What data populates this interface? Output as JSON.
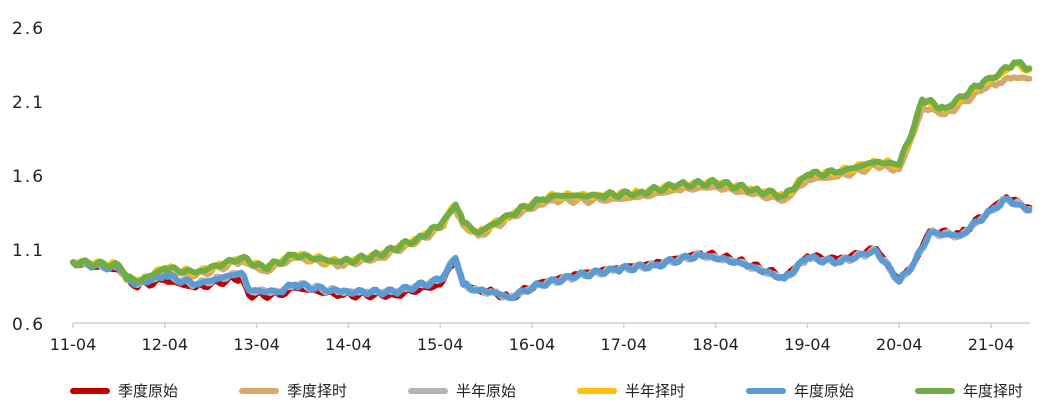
{
  "chart_data": {
    "type": "line",
    "title": "",
    "xlabel": "",
    "ylabel": "",
    "ylim": [
      0.6,
      2.6
    ],
    "yticks": [
      "0.6",
      "1.1",
      "1.6",
      "2.1",
      "2.6"
    ],
    "xlim": [
      "2011-04",
      "2021-09"
    ],
    "xticks": [
      "11-04",
      "12-04",
      "13-04",
      "14-04",
      "15-04",
      "16-04",
      "17-04",
      "18-04",
      "19-04",
      "20-04",
      "21-04"
    ],
    "grid": false,
    "legend_position": "bottom",
    "series": [
      {
        "name": "季度原始",
        "color": "#c00000",
        "x": [
          "2011-04",
          "2011-10",
          "2011-12",
          "2012-04",
          "2012-08",
          "2013-02",
          "2013-03",
          "2013-07",
          "2013-09",
          "2014-03",
          "2014-10",
          "2015-04",
          "2015-06",
          "2015-07",
          "2015-09",
          "2015-11",
          "2016-01",
          "2016-05",
          "2016-10",
          "2017-03",
          "2017-08",
          "2018-02",
          "2018-07",
          "2019-01",
          "2019-04",
          "2019-08",
          "2020-01",
          "2020-04",
          "2020-06",
          "2020-08",
          "2020-12",
          "2021-04",
          "2021-06",
          "2021-09"
        ],
        "y": [
          1.01,
          0.96,
          0.85,
          0.89,
          0.84,
          0.91,
          0.79,
          0.79,
          0.84,
          0.79,
          0.79,
          0.86,
          1.03,
          0.86,
          0.82,
          0.81,
          0.77,
          0.87,
          0.93,
          0.97,
          1.0,
          1.07,
          1.02,
          0.91,
          1.05,
          1.03,
          1.1,
          0.88,
          1.01,
          1.22,
          1.2,
          1.37,
          1.45,
          1.38
        ]
      },
      {
        "name": "季度择时",
        "color": "#d4a96a",
        "x": [
          "2011-04",
          "2011-10",
          "2011-11",
          "2012-01",
          "2012-04",
          "2012-08",
          "2013-02",
          "2013-05",
          "2013-09",
          "2014-03",
          "2014-08",
          "2015-01",
          "2015-04",
          "2015-06",
          "2015-07",
          "2015-09",
          "2016-01",
          "2016-05",
          "2016-07",
          "2017-01",
          "2017-06",
          "2017-11",
          "2018-04",
          "2018-09",
          "2019-01",
          "2019-04",
          "2019-08",
          "2020-01",
          "2020-04",
          "2020-06",
          "2020-07",
          "2020-10",
          "2021-03",
          "2021-05",
          "2021-07",
          "2021-09"
        ],
        "y": [
          1.01,
          0.98,
          0.89,
          0.88,
          0.95,
          0.92,
          1.02,
          0.95,
          1.04,
          0.99,
          1.04,
          1.15,
          1.24,
          1.38,
          1.26,
          1.19,
          1.31,
          1.4,
          1.43,
          1.43,
          1.45,
          1.5,
          1.52,
          1.47,
          1.43,
          1.57,
          1.59,
          1.66,
          1.64,
          1.9,
          2.06,
          2.01,
          2.18,
          2.22,
          2.26,
          2.25
        ]
      },
      {
        "name": "半年原始",
        "color": "#b4b4b4",
        "x": [
          "2011-04",
          "2011-10",
          "2011-12",
          "2012-04",
          "2012-08",
          "2013-02",
          "2013-03",
          "2013-07",
          "2013-09",
          "2014-03",
          "2014-10",
          "2015-04",
          "2015-06",
          "2015-07",
          "2015-09",
          "2015-11",
          "2016-01",
          "2016-05",
          "2016-10",
          "2017-03",
          "2017-08",
          "2018-02",
          "2018-07",
          "2019-01",
          "2019-04",
          "2019-08",
          "2020-01",
          "2020-04",
          "2020-06",
          "2020-08",
          "2020-12",
          "2021-04",
          "2021-06",
          "2021-09"
        ],
        "y": [
          1.01,
          0.97,
          0.86,
          0.92,
          0.86,
          0.94,
          0.82,
          0.81,
          0.86,
          0.81,
          0.81,
          0.89,
          1.04,
          0.86,
          0.82,
          0.81,
          0.77,
          0.86,
          0.92,
          0.96,
          0.99,
          1.06,
          1.01,
          0.9,
          1.04,
          1.01,
          1.09,
          0.88,
          1.01,
          1.21,
          1.19,
          1.36,
          1.44,
          1.37
        ]
      },
      {
        "name": "半年择时",
        "color": "#ffc000",
        "x": [
          "2011-04",
          "2011-10",
          "2011-11",
          "2012-01",
          "2012-04",
          "2012-08",
          "2013-02",
          "2013-05",
          "2013-09",
          "2014-03",
          "2014-08",
          "2015-01",
          "2015-04",
          "2015-06",
          "2015-07",
          "2015-09",
          "2016-01",
          "2016-05",
          "2016-07",
          "2017-01",
          "2017-06",
          "2017-11",
          "2018-04",
          "2018-09",
          "2019-01",
          "2019-04",
          "2019-08",
          "2020-01",
          "2020-04",
          "2020-06",
          "2020-07",
          "2020-10",
          "2021-03",
          "2021-05",
          "2021-07",
          "2021-09"
        ],
        "y": [
          1.01,
          0.99,
          0.9,
          0.89,
          0.97,
          0.94,
          1.04,
          0.97,
          1.06,
          1.01,
          1.06,
          1.17,
          1.26,
          1.4,
          1.28,
          1.21,
          1.33,
          1.43,
          1.46,
          1.46,
          1.48,
          1.53,
          1.55,
          1.5,
          1.46,
          1.6,
          1.62,
          1.69,
          1.67,
          1.93,
          2.1,
          2.04,
          2.22,
          2.27,
          2.35,
          2.31
        ]
      },
      {
        "name": "年度原始",
        "color": "#5b9bd5",
        "x": [
          "2011-04",
          "2011-10",
          "2011-12",
          "2012-04",
          "2012-08",
          "2013-02",
          "2013-03",
          "2013-07",
          "2013-09",
          "2014-03",
          "2014-10",
          "2015-04",
          "2015-06",
          "2015-07",
          "2015-09",
          "2015-11",
          "2016-01",
          "2016-05",
          "2016-10",
          "2017-03",
          "2017-08",
          "2018-02",
          "2018-07",
          "2019-01",
          "2019-04",
          "2019-08",
          "2020-01",
          "2020-04",
          "2020-06",
          "2020-08",
          "2020-12",
          "2021-04",
          "2021-06",
          "2021-09"
        ],
        "y": [
          1.01,
          0.97,
          0.86,
          0.92,
          0.86,
          0.94,
          0.82,
          0.81,
          0.86,
          0.81,
          0.81,
          0.89,
          1.04,
          0.86,
          0.82,
          0.81,
          0.77,
          0.86,
          0.92,
          0.96,
          0.99,
          1.06,
          1.01,
          0.9,
          1.04,
          1.01,
          1.09,
          0.88,
          1.01,
          1.21,
          1.19,
          1.36,
          1.44,
          1.36
        ]
      },
      {
        "name": "年度择时",
        "color": "#70ad47",
        "x": [
          "2011-04",
          "2011-10",
          "2011-11",
          "2012-01",
          "2012-04",
          "2012-08",
          "2013-02",
          "2013-05",
          "2013-09",
          "2014-03",
          "2014-08",
          "2015-01",
          "2015-04",
          "2015-06",
          "2015-07",
          "2015-09",
          "2016-01",
          "2016-05",
          "2016-07",
          "2017-01",
          "2017-06",
          "2017-11",
          "2018-04",
          "2018-09",
          "2019-01",
          "2019-04",
          "2019-08",
          "2020-01",
          "2020-04",
          "2020-06",
          "2020-07",
          "2020-10",
          "2021-03",
          "2021-05",
          "2021-07",
          "2021-09"
        ],
        "y": [
          1.01,
          0.99,
          0.9,
          0.89,
          0.97,
          0.94,
          1.04,
          0.97,
          1.06,
          1.01,
          1.06,
          1.17,
          1.26,
          1.4,
          1.28,
          1.21,
          1.33,
          1.43,
          1.46,
          1.46,
          1.48,
          1.53,
          1.55,
          1.5,
          1.46,
          1.6,
          1.62,
          1.69,
          1.67,
          1.94,
          2.11,
          2.05,
          2.23,
          2.28,
          2.36,
          2.32
        ]
      }
    ]
  }
}
